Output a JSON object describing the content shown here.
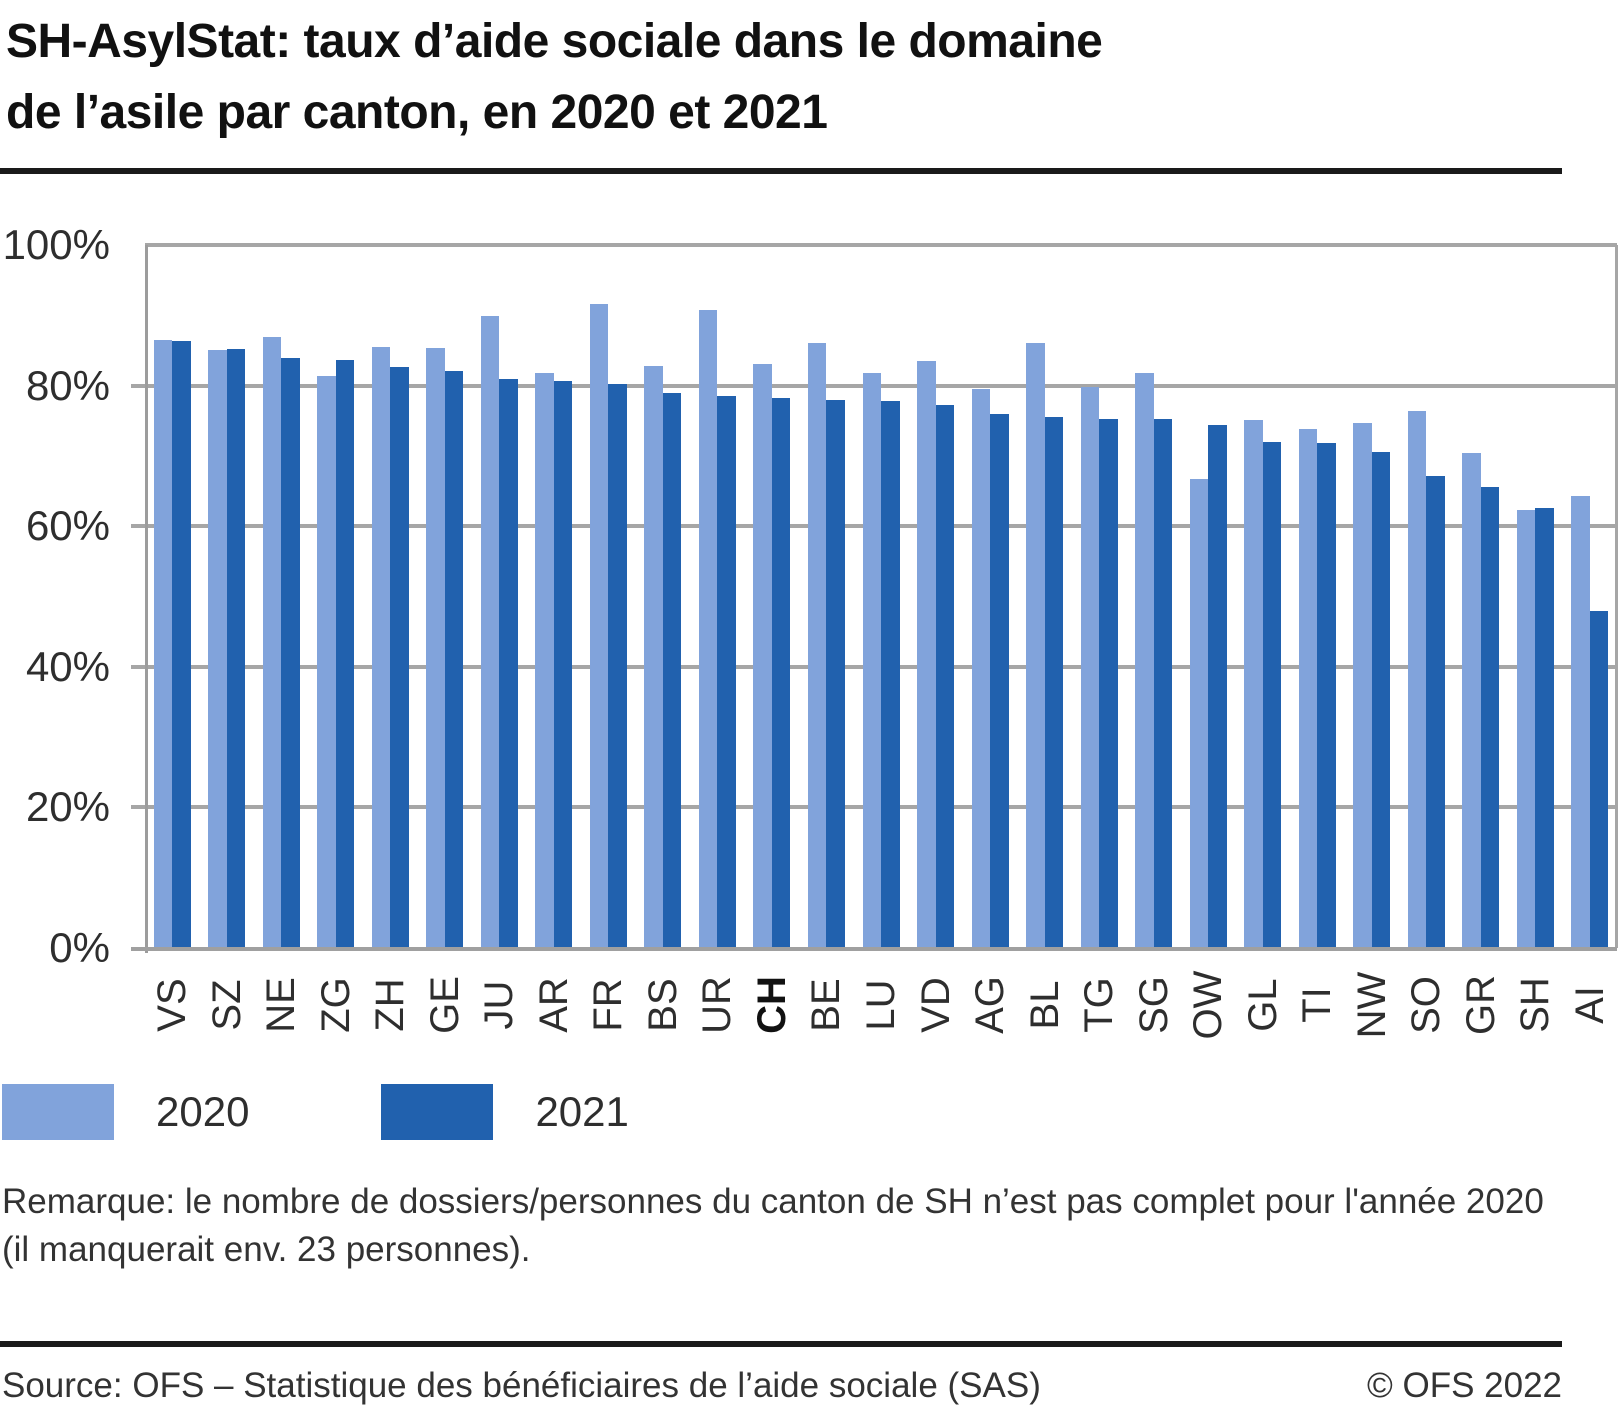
{
  "header": {
    "title_line1": "SH-AsylStat: taux d’aide sociale dans le domaine",
    "title_line2": "de l’asile par canton, en 2020 et 2021"
  },
  "chart_data": {
    "type": "bar",
    "title": "SH-AsylStat: taux d’aide sociale dans le domaine de l’asile par canton, en 2020 et 2021",
    "categories": [
      "VS",
      "SZ",
      "NE",
      "ZG",
      "ZH",
      "GE",
      "JU",
      "AR",
      "FR",
      "BS",
      "UR",
      "CH",
      "BE",
      "LU",
      "VD",
      "AG",
      "BL",
      "TG",
      "SG",
      "OW",
      "GL",
      "TI",
      "NW",
      "SO",
      "GR",
      "SH",
      "AI"
    ],
    "bold_category": "CH",
    "series": [
      {
        "name": "2020",
        "color": "#81A3DB",
        "values": [
          86.5,
          85.0,
          86.9,
          81.4,
          85.5,
          85.4,
          89.9,
          81.8,
          91.6,
          82.8,
          90.8,
          83.1,
          86.0,
          81.8,
          83.5,
          79.5,
          86.1,
          79.8,
          81.8,
          66.7,
          75.1,
          73.8,
          74.7,
          76.4,
          70.4,
          62.3,
          64.3
        ]
      },
      {
        "name": "2021",
        "color": "#2161AE",
        "values": [
          86.3,
          85.2,
          83.9,
          83.6,
          82.6,
          82.1,
          81.0,
          80.6,
          80.2,
          79.0,
          78.5,
          78.3,
          78.0,
          77.8,
          77.3,
          75.9,
          75.6,
          75.2,
          75.2,
          74.4,
          72.0,
          71.9,
          70.5,
          67.1,
          65.6,
          62.6,
          48.0
        ]
      }
    ],
    "ylim": [
      0,
      100
    ],
    "y_ticks": [
      100,
      80,
      60,
      40,
      20,
      0
    ],
    "y_tick_labels": [
      "100%",
      "80%",
      "60%",
      "40%",
      "20%",
      "0%"
    ],
    "grid": "horizontal gridlines every 20%",
    "legend_position": "bottom-left",
    "gridline_color": "#a6a6a6"
  },
  "legend": {
    "items": [
      {
        "label": "2020",
        "color": "#81A3DB"
      },
      {
        "label": "2021",
        "color": "#2161AE"
      }
    ]
  },
  "note": {
    "line1": "Remarque: le nombre de dossiers/personnes du canton de SH n’est pas complet pour l'année 2020",
    "line2": "(il manquerait env. 23 personnes)."
  },
  "footer": {
    "source": "Source: OFS – Statistique des bénéficiaires de l’aide sociale (SAS)",
    "copyright": "© OFS 2022"
  }
}
